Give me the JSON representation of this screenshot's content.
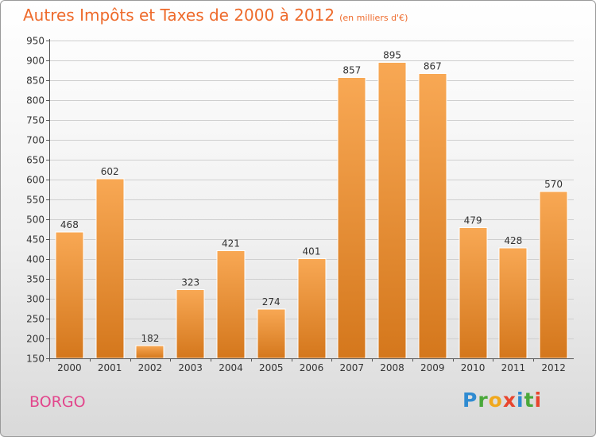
{
  "header": {
    "title": "Autres Impôts et Taxes de 2000 à 2012",
    "unit": "(en milliers d'€)"
  },
  "footer": {
    "place": "BORGO",
    "logo_text": "Proxiti"
  },
  "colors": {
    "title": "#ee6a2b",
    "place": "#e2468c",
    "bar_light": "#f8a854",
    "bar_dark": "#d4771c",
    "axis_text": "#333333"
  },
  "chart_data": {
    "type": "bar",
    "title": "Autres Impôts et Taxes de 2000 à 2012",
    "xlabel": "",
    "ylabel": "",
    "categories": [
      "2000",
      "2001",
      "2002",
      "2003",
      "2004",
      "2005",
      "2006",
      "2007",
      "2008",
      "2009",
      "2010",
      "2011",
      "2012"
    ],
    "values": [
      468,
      602,
      182,
      323,
      421,
      274,
      401,
      857,
      895,
      867,
      479,
      428,
      570
    ],
    "ylim": [
      150,
      950
    ],
    "yticks": [
      150,
      200,
      250,
      300,
      350,
      400,
      450,
      500,
      550,
      600,
      650,
      700,
      750,
      800,
      850,
      900,
      950
    ],
    "grid": true,
    "legend": "none"
  }
}
